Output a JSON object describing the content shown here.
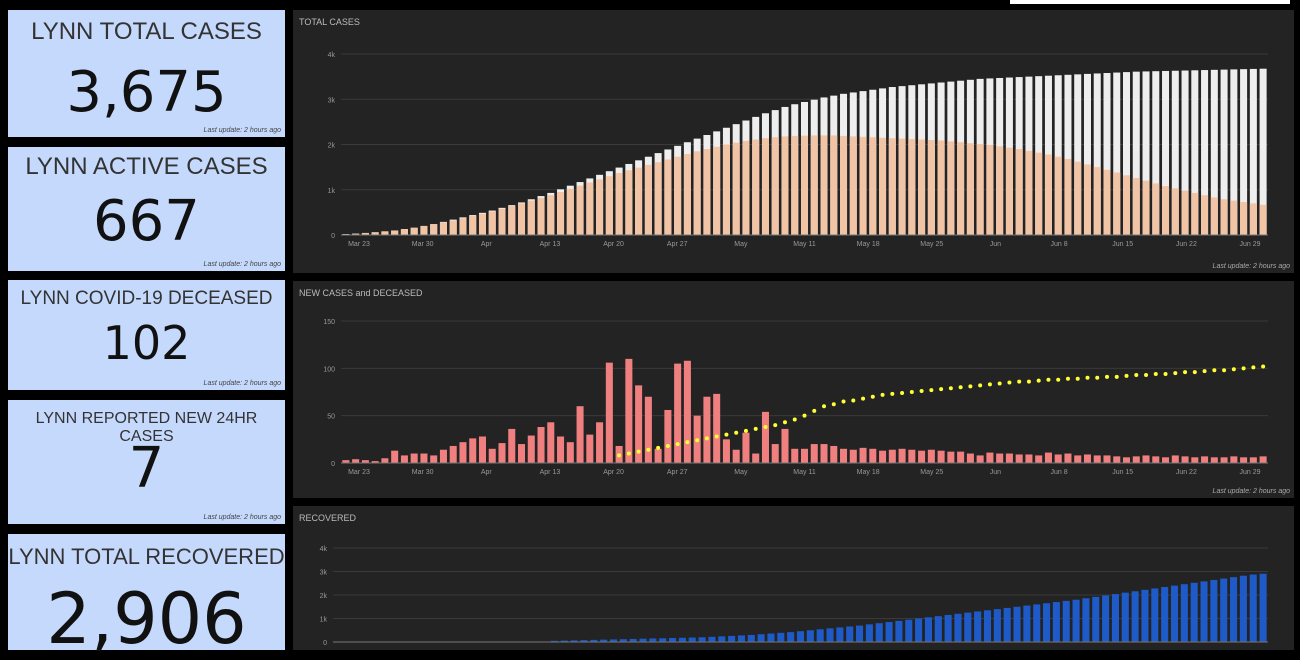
{
  "stats": [
    {
      "title": "LYNN TOTAL CASES",
      "value": "3,675",
      "updated": "Last update: 2 hours ago"
    },
    {
      "title": "LYNN ACTIVE CASES",
      "value": "667",
      "updated": "Last update: 2 hours ago"
    },
    {
      "title": "LYNN COVID-19 DECEASED",
      "value": "102",
      "updated": "Last update: 2 hours ago"
    },
    {
      "title": "LYNN REPORTED NEW 24HR CASES",
      "value": "7",
      "updated": "Last update: 2 hours ago"
    },
    {
      "title": "LYNN TOTAL RECOVERED",
      "value": "2,906",
      "updated": "Last update: 2 hours ago"
    }
  ],
  "panels": {
    "total": {
      "title": "TOTAL CASES",
      "updated": "Last update: 2 hours ago"
    },
    "new": {
      "title": "NEW CASES and DECEASED",
      "updated": "Last update: 2 hours ago"
    },
    "recovered": {
      "title": "RECOVERED"
    }
  },
  "colors": {
    "total": "#eeeeee",
    "active": "#f2c4a6",
    "new": "#f08080",
    "deceased": "#ffff33",
    "recovered": "#1e5ac8",
    "card": "#c5d9fc"
  },
  "chart_data": [
    {
      "type": "bar",
      "title": "TOTAL CASES",
      "x_ticks": [
        "Mar 23",
        "Mar 30",
        "Apr",
        "Apr 13",
        "Apr 20",
        "Apr 27",
        "May",
        "May 11",
        "May 18",
        "May 25",
        "Jun",
        "Jun 8",
        "Jun 15",
        "Jun 22",
        "Jun 29"
      ],
      "y_ticks": [
        "0",
        "1k",
        "2k",
        "3k",
        "4k"
      ],
      "ylim": [
        0,
        4000
      ],
      "series": [
        {
          "values": [
            20,
            30,
            45,
            60,
            80,
            100,
            130,
            160,
            200,
            240,
            290,
            340,
            390,
            440,
            490,
            540,
            600,
            660,
            720,
            790,
            860,
            930,
            1010,
            1090,
            1170,
            1250,
            1330,
            1410,
            1490,
            1570,
            1650,
            1730,
            1810,
            1890,
            1970,
            2050,
            2130,
            2210,
            2290,
            2370,
            2450,
            2530,
            2610,
            2690,
            2760,
            2830,
            2890,
            2940,
            2990,
            3040,
            3080,
            3120,
            3150,
            3180,
            3210,
            3240,
            3270,
            3290,
            3310,
            3330,
            3350,
            3370,
            3390,
            3410,
            3430,
            3450,
            3460,
            3470,
            3480,
            3490,
            3500,
            3510,
            3520,
            3530,
            3540,
            3550,
            3560,
            3570,
            3580,
            3590,
            3600,
            3610,
            3615,
            3620,
            3625,
            3630,
            3635,
            3640,
            3645,
            3650,
            3655,
            3660,
            3665,
            3670,
            3675
          ]
        },
        {
          "values": [
            20,
            30,
            45,
            60,
            80,
            100,
            130,
            160,
            200,
            240,
            280,
            320,
            370,
            420,
            470,
            520,
            580,
            640,
            700,
            760,
            820,
            880,
            950,
            1020,
            1090,
            1160,
            1230,
            1300,
            1370,
            1430,
            1490,
            1550,
            1610,
            1670,
            1730,
            1790,
            1850,
            1900,
            1950,
            2000,
            2040,
            2080,
            2110,
            2140,
            2160,
            2180,
            2190,
            2195,
            2200,
            2200,
            2200,
            2190,
            2180,
            2170,
            2160,
            2150,
            2140,
            2130,
            2120,
            2110,
            2100,
            2090,
            2070,
            2050,
            2030,
            2010,
            1990,
            1960,
            1930,
            1900,
            1860,
            1820,
            1780,
            1730,
            1680,
            1620,
            1560,
            1500,
            1440,
            1380,
            1320,
            1260,
            1200,
            1140,
            1080,
            1030,
            980,
            930,
            880,
            830,
            790,
            760,
            730,
            700,
            667
          ]
        }
      ]
    },
    {
      "type": "bar",
      "title": "NEW CASES and DECEASED",
      "x_ticks": [
        "Mar 23",
        "Mar 30",
        "Apr",
        "Apr 13",
        "Apr 20",
        "Apr 27",
        "May",
        "May 11",
        "May 18",
        "May 25",
        "Jun",
        "Jun 8",
        "Jun 15",
        "Jun 22",
        "Jun 29"
      ],
      "y_ticks": [
        "0",
        "50",
        "100",
        "150"
      ],
      "ylim": [
        0,
        150
      ],
      "series": [
        {
          "values": [
            3,
            4,
            3,
            2,
            5,
            13,
            8,
            10,
            10,
            8,
            14,
            18,
            22,
            26,
            28,
            15,
            21,
            36,
            20,
            29,
            38,
            43,
            28,
            22,
            60,
            30,
            43,
            106,
            18,
            110,
            82,
            70,
            15,
            56,
            105,
            108,
            50,
            70,
            73,
            25,
            14,
            32,
            10,
            54,
            20,
            36,
            15,
            15,
            20,
            20,
            18,
            15,
            14,
            16,
            15,
            13,
            14,
            15,
            14,
            13,
            14,
            13,
            12,
            12,
            10,
            8,
            11,
            10,
            10,
            9,
            9,
            8,
            11,
            9,
            10,
            8,
            9,
            8,
            8,
            7,
            6,
            7,
            8,
            7,
            6,
            8,
            7,
            6,
            7,
            6,
            6,
            7,
            6,
            6,
            7
          ]
        },
        {
          "values": [
            null,
            null,
            null,
            null,
            null,
            null,
            null,
            null,
            null,
            null,
            null,
            null,
            null,
            null,
            null,
            null,
            null,
            null,
            null,
            null,
            null,
            null,
            null,
            null,
            null,
            null,
            null,
            null,
            8,
            10,
            12,
            14,
            16,
            18,
            20,
            22,
            24,
            26,
            28,
            30,
            32,
            34,
            36,
            38,
            40,
            43,
            46,
            50,
            55,
            60,
            62,
            65,
            66,
            68,
            70,
            72,
            73,
            74,
            75,
            76,
            77,
            78,
            79,
            80,
            81,
            82,
            83,
            84,
            85,
            86,
            86,
            87,
            88,
            88,
            89,
            89,
            90,
            90,
            91,
            91,
            92,
            93,
            93,
            94,
            94,
            95,
            96,
            96,
            97,
            98,
            98,
            99,
            100,
            101,
            102
          ]
        }
      ]
    },
    {
      "type": "bar",
      "title": "RECOVERED",
      "y_ticks": [
        "0",
        "1k",
        "2k",
        "3k",
        "4k"
      ],
      "ylim": [
        0,
        4000
      ],
      "series": [
        {
          "values": [
            0,
            0,
            0,
            0,
            0,
            0,
            0,
            0,
            0,
            0,
            0,
            0,
            0,
            0,
            0,
            0,
            0,
            0,
            0,
            0,
            0,
            0,
            50,
            60,
            70,
            80,
            90,
            100,
            110,
            120,
            130,
            140,
            150,
            160,
            170,
            180,
            190,
            200,
            220,
            240,
            260,
            280,
            300,
            330,
            360,
            390,
            420,
            460,
            500,
            540,
            580,
            620,
            660,
            700,
            750,
            800,
            850,
            900,
            950,
            1000,
            1050,
            1100,
            1150,
            1200,
            1250,
            1300,
            1350,
            1400,
            1450,
            1500,
            1550,
            1600,
            1650,
            1700,
            1750,
            1800,
            1860,
            1920,
            1980,
            2040,
            2100,
            2160,
            2220,
            2280,
            2340,
            2400,
            2460,
            2520,
            2580,
            2640,
            2700,
            2760,
            2820,
            2870,
            2906
          ]
        }
      ]
    }
  ]
}
